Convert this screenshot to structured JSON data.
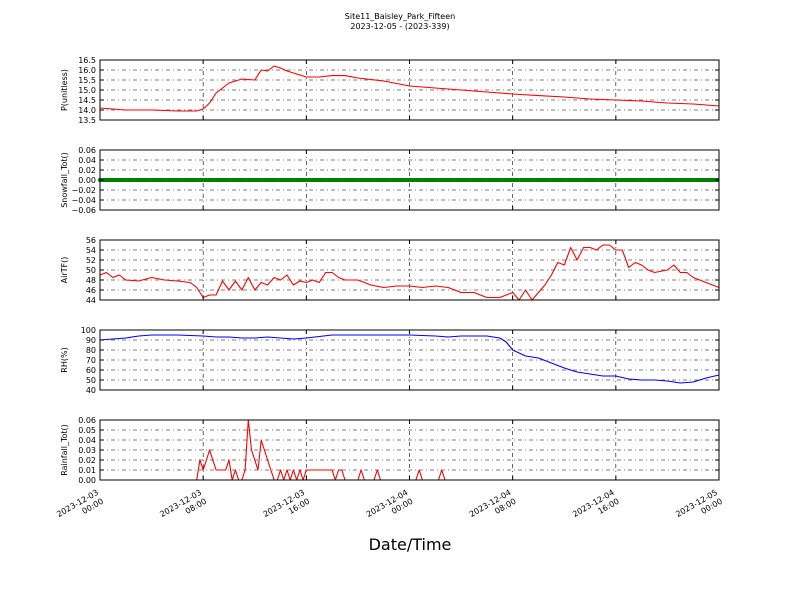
{
  "title": "Site11_Baisley_Park_Fifteen",
  "subtitle": "2023-12-05 - (2023-339)",
  "xlabel": "Date/Time",
  "x_ticks": [
    {
      "h": 0,
      "line1": "2023-12-03",
      "line2": "00:00"
    },
    {
      "h": 8,
      "line1": "2023-12-03",
      "line2": "08:00"
    },
    {
      "h": 16,
      "line1": "2023-12-03",
      "line2": "16:00"
    },
    {
      "h": 24,
      "line1": "2023-12-04",
      "line2": "00:00"
    },
    {
      "h": 32,
      "line1": "2023-12-04",
      "line2": "08:00"
    },
    {
      "h": 40,
      "line1": "2023-12-04",
      "line2": "16:00"
    },
    {
      "h": 48,
      "line1": "2023-12-05",
      "line2": "00:00"
    }
  ],
  "chart_data": [
    {
      "type": "line",
      "ylabel": "P(unitless)",
      "ylim": [
        13.5,
        16.5
      ],
      "yticks": [
        "13.5",
        "14.0",
        "14.5",
        "15.0",
        "15.5",
        "16.0",
        "16.5"
      ],
      "color": "#ff0000",
      "grid": true,
      "x_unit": "hours since 2023-12-03 00:00",
      "x": [
        0,
        2,
        4,
        6,
        7,
        7.5,
        8,
        8.5,
        9,
        10,
        11,
        12,
        12.5,
        13,
        13.5,
        14,
        14.5,
        15,
        16,
        17,
        18,
        19,
        20,
        22,
        24,
        26,
        28,
        30,
        32,
        34,
        36,
        38,
        40,
        42,
        44,
        46,
        48
      ],
      "y": [
        14.1,
        14.0,
        14.0,
        13.95,
        13.95,
        13.95,
        14.05,
        14.35,
        14.85,
        15.35,
        15.55,
        15.5,
        16.0,
        15.95,
        16.2,
        16.1,
        15.95,
        15.85,
        15.65,
        15.65,
        15.72,
        15.72,
        15.6,
        15.45,
        15.2,
        15.1,
        15.0,
        14.9,
        14.8,
        14.72,
        14.65,
        14.55,
        14.5,
        14.45,
        14.35,
        14.3,
        14.2
      ]
    },
    {
      "type": "line",
      "ylabel": "Snowfall_Tot()",
      "ylim": [
        -0.06,
        0.06
      ],
      "yticks": [
        "−0.06",
        "−0.04",
        "−0.02",
        "0.00",
        "0.02",
        "0.04",
        "0.06"
      ],
      "color": "#008000",
      "grid": true,
      "markers": true,
      "x_unit": "hours since 2023-12-03 00:00",
      "x": [
        0,
        48
      ],
      "y": [
        0,
        0
      ]
    },
    {
      "type": "line",
      "ylabel": "AirTF()",
      "ylim": [
        44,
        56
      ],
      "yticks": [
        "44",
        "46",
        "48",
        "50",
        "52",
        "54",
        "56"
      ],
      "color": "#ff0000",
      "grid": true,
      "x_unit": "hours since 2023-12-03 00:00",
      "x": [
        0,
        0.5,
        1,
        1.5,
        2,
        3,
        4,
        5,
        6,
        7,
        7.5,
        8,
        8.5,
        9,
        9.5,
        10,
        10.5,
        11,
        11.5,
        12,
        12.5,
        13,
        13.5,
        14,
        14.5,
        15,
        15.5,
        16,
        16.5,
        17,
        17.5,
        18,
        18.5,
        19,
        20,
        21,
        22,
        23,
        24,
        25,
        26,
        27,
        28,
        29,
        30,
        31,
        32,
        32.5,
        33,
        33.5,
        34,
        34.5,
        35,
        35.5,
        36,
        36.5,
        37,
        37.5,
        38,
        38.5,
        39,
        39.5,
        40,
        40.5,
        41,
        41.5,
        42,
        42.5,
        43,
        44,
        44.5,
        45,
        45.5,
        46,
        46.5,
        47,
        47.5,
        48
      ],
      "y": [
        49,
        49.5,
        48.5,
        49,
        48,
        47.8,
        48.5,
        48,
        47.8,
        47.5,
        46.5,
        44.5,
        45,
        45,
        47.8,
        46,
        47.8,
        46,
        48.5,
        46,
        47.5,
        47,
        48.5,
        48,
        49,
        47,
        47.8,
        47.5,
        48,
        47.5,
        49.5,
        49.5,
        48.5,
        48,
        48,
        47,
        46.5,
        46.8,
        46.8,
        46.5,
        46.8,
        46.5,
        45.5,
        45.5,
        44.5,
        44.5,
        45.5,
        44,
        46,
        44,
        45.5,
        47,
        49,
        51.5,
        51,
        54.5,
        52,
        54.5,
        54.5,
        54,
        55,
        55,
        54,
        54,
        50.5,
        51.5,
        51,
        50,
        49.5,
        50,
        51,
        49.5,
        49.5,
        48.5,
        48,
        47.5,
        47,
        46.5
      ]
    },
    {
      "type": "line",
      "ylabel": "RH(%)",
      "ylim": [
        40,
        100
      ],
      "yticks": [
        "40",
        "50",
        "60",
        "70",
        "80",
        "90",
        "100"
      ],
      "color": "#0000ff",
      "grid": true,
      "x_unit": "hours since 2023-12-03 00:00",
      "x": [
        0,
        2,
        3,
        4,
        6,
        8,
        9,
        10,
        11,
        12,
        13,
        14,
        15,
        16,
        18,
        20,
        22,
        24,
        26,
        27,
        28,
        29,
        30,
        31,
        31.5,
        32,
        32.5,
        33,
        34,
        35,
        36,
        37,
        38,
        39,
        40,
        41,
        42,
        43,
        44,
        45,
        46,
        47,
        48
      ],
      "y": [
        90,
        92,
        94,
        95,
        95,
        94,
        93,
        93,
        92,
        92,
        93,
        92,
        91,
        92,
        95,
        95,
        95,
        95,
        94,
        93,
        94,
        94,
        94,
        92,
        88,
        80,
        77,
        74,
        72,
        67,
        62,
        58,
        56,
        54,
        54,
        51,
        50,
        50,
        49,
        47,
        48,
        52,
        55
      ]
    },
    {
      "type": "line",
      "ylabel": "Rainfall_Tot()",
      "ylim": [
        0,
        0.06
      ],
      "yticks": [
        "0.00",
        "0.01",
        "0.02",
        "0.03",
        "0.04",
        "0.05",
        "0.06"
      ],
      "color": "#ff0000",
      "grid": true,
      "x_unit": "hours since 2023-12-03 00:00",
      "x": [
        0,
        7.5,
        7.75,
        8,
        8.25,
        8.5,
        8.75,
        9,
        9.25,
        9.5,
        9.75,
        10,
        10.25,
        10.5,
        10.75,
        11,
        11.25,
        11.5,
        11.75,
        12,
        12.25,
        12.5,
        12.75,
        13,
        13.25,
        13.5,
        13.75,
        14,
        14.25,
        14.5,
        14.75,
        15,
        15.25,
        15.5,
        15.75,
        16,
        16.25,
        16.5,
        16.75,
        17,
        17.25,
        17.5,
        17.75,
        18,
        18.25,
        18.5,
        18.75,
        19,
        19.25,
        19.5,
        19.75,
        20,
        20.25,
        20.5,
        21,
        21.25,
        21.5,
        21.75,
        22,
        22.5,
        23,
        23.5,
        24,
        24.5,
        24.75,
        25,
        25.25,
        25.5,
        26,
        26.25,
        26.5,
        26.75,
        27,
        27.5,
        28,
        36,
        48
      ],
      "y": [
        0,
        0,
        0.02,
        0.01,
        0.02,
        0.03,
        0.02,
        0.01,
        0.01,
        0.01,
        0.01,
        0.02,
        0,
        0.01,
        0,
        0,
        0.01,
        0.06,
        0.03,
        0.02,
        0.01,
        0.04,
        0.03,
        0.02,
        0.01,
        0,
        0,
        0.01,
        0,
        0.01,
        0,
        0.01,
        0,
        0.01,
        0,
        0.01,
        0.01,
        0.01,
        0.01,
        0.01,
        0.01,
        0.01,
        0.01,
        0.01,
        0,
        0.01,
        0.01,
        0,
        0,
        0,
        0,
        0,
        0.01,
        0,
        0,
        0,
        0.01,
        0,
        0,
        0,
        0,
        0,
        0,
        0,
        0.01,
        0,
        0,
        0,
        0,
        0,
        0.01,
        0,
        0,
        0,
        0,
        0,
        0
      ]
    }
  ]
}
